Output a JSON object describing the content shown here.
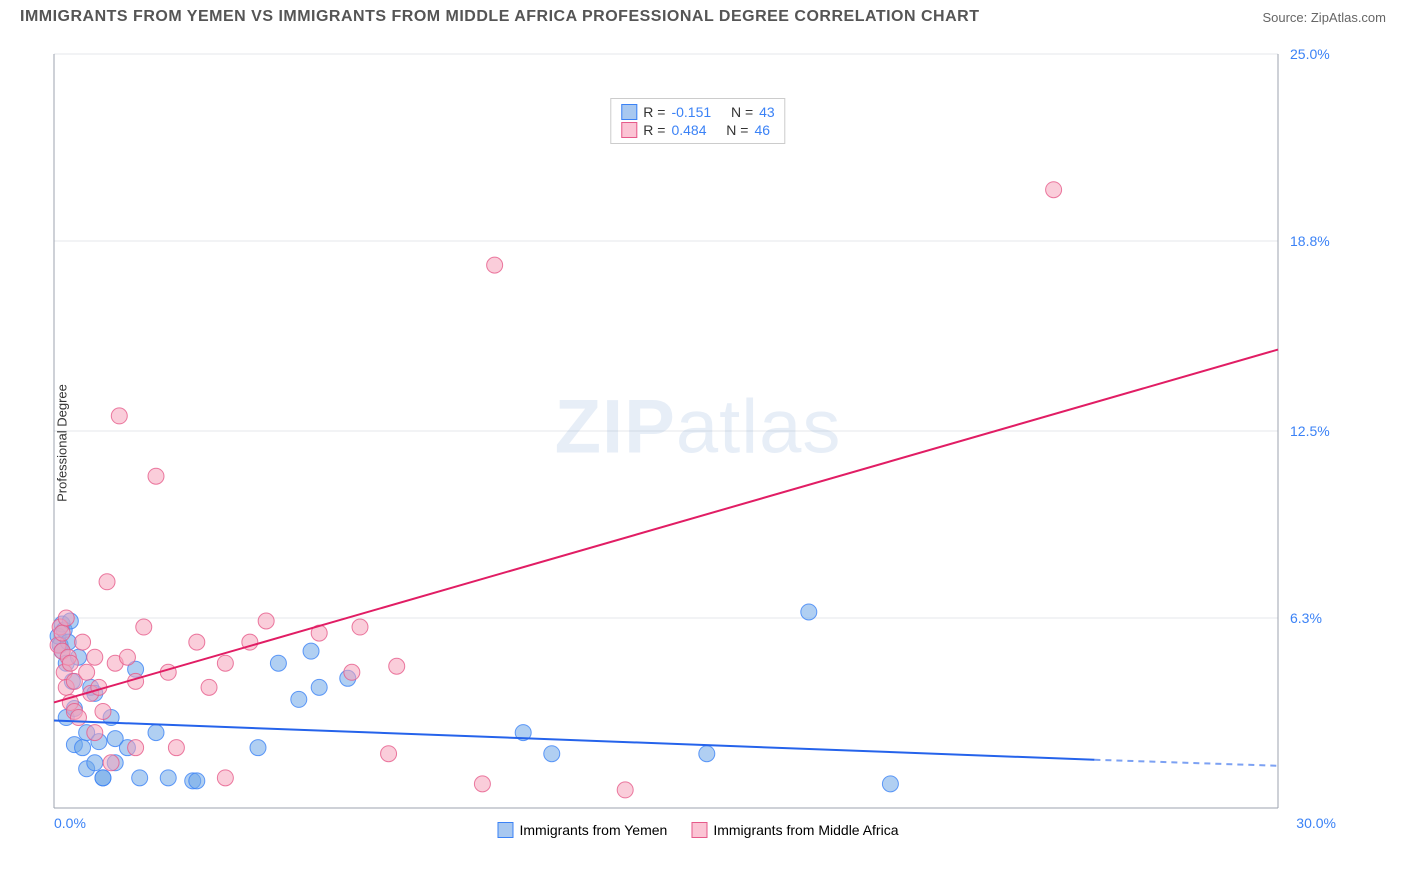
{
  "title": "IMMIGRANTS FROM YEMEN VS IMMIGRANTS FROM MIDDLE AFRICA PROFESSIONAL DEGREE CORRELATION CHART",
  "source_label": "Source: ",
  "source_name": "ZipAtlas.com",
  "y_axis_label": "Professional Degree",
  "watermark_bold": "ZIP",
  "watermark_rest": "atlas",
  "chart": {
    "type": "scatter",
    "xlim": [
      0,
      30
    ],
    "ylim": [
      0,
      25
    ],
    "x_ticks": [
      {
        "v": 0,
        "label": "0.0%"
      },
      {
        "v": 30,
        "label": "30.0%"
      }
    ],
    "y_ticks": [
      {
        "v": 6.3,
        "label": "6.3%"
      },
      {
        "v": 12.5,
        "label": "12.5%"
      },
      {
        "v": 18.8,
        "label": "18.8%"
      },
      {
        "v": 25.0,
        "label": "25.0%"
      }
    ],
    "grid_color": "#e5e7eb",
    "border_color": "#9ca3af",
    "background_color": "#ffffff",
    "marker_radius": 8,
    "marker_opacity": 0.55,
    "series": [
      {
        "name": "Immigrants from Yemen",
        "color": "#6fa8e8",
        "stroke": "#3b82f6",
        "R": "-0.151",
        "N": "43",
        "trend": {
          "x1": 0,
          "y1": 2.9,
          "x2": 25.5,
          "y2": 1.6,
          "dashed_to": 30,
          "y_dashed": 1.4,
          "color": "#2563eb",
          "width": 2
        },
        "points": [
          [
            0.1,
            5.7
          ],
          [
            0.15,
            5.4
          ],
          [
            0.2,
            6.1
          ],
          [
            0.2,
            5.2
          ],
          [
            0.25,
            5.9
          ],
          [
            0.3,
            4.8
          ],
          [
            0.3,
            3.0
          ],
          [
            0.35,
            5.5
          ],
          [
            0.4,
            6.2
          ],
          [
            0.45,
            4.2
          ],
          [
            0.5,
            3.3
          ],
          [
            0.5,
            2.1
          ],
          [
            0.6,
            5.0
          ],
          [
            0.7,
            2.0
          ],
          [
            0.8,
            1.3
          ],
          [
            0.8,
            2.5
          ],
          [
            0.9,
            4.0
          ],
          [
            1.0,
            1.5
          ],
          [
            1.0,
            3.8
          ],
          [
            1.1,
            2.2
          ],
          [
            1.2,
            1.0
          ],
          [
            1.2,
            1.0
          ],
          [
            1.4,
            3.0
          ],
          [
            1.5,
            1.5
          ],
          [
            1.5,
            2.3
          ],
          [
            1.8,
            2.0
          ],
          [
            2.0,
            4.6
          ],
          [
            2.1,
            1.0
          ],
          [
            2.5,
            2.5
          ],
          [
            2.8,
            1.0
          ],
          [
            3.4,
            0.9
          ],
          [
            3.5,
            0.9
          ],
          [
            5.0,
            2.0
          ],
          [
            5.5,
            4.8
          ],
          [
            6.0,
            3.6
          ],
          [
            6.3,
            5.2
          ],
          [
            7.2,
            4.3
          ],
          [
            11.5,
            2.5
          ],
          [
            12.2,
            1.8
          ],
          [
            16.0,
            1.8
          ],
          [
            18.5,
            6.5
          ],
          [
            20.5,
            0.8
          ],
          [
            6.5,
            4.0
          ]
        ]
      },
      {
        "name": "Immigrants from Middle Africa",
        "color": "#f6a4bb",
        "stroke": "#e65a8a",
        "R": "0.484",
        "N": "46",
        "trend": {
          "x1": 0,
          "y1": 3.5,
          "x2": 30,
          "y2": 15.2,
          "color": "#e11d64",
          "width": 2
        },
        "points": [
          [
            0.1,
            5.4
          ],
          [
            0.15,
            6.0
          ],
          [
            0.2,
            5.2
          ],
          [
            0.2,
            5.8
          ],
          [
            0.25,
            4.5
          ],
          [
            0.3,
            6.3
          ],
          [
            0.3,
            4.0
          ],
          [
            0.35,
            5.0
          ],
          [
            0.4,
            3.5
          ],
          [
            0.4,
            4.8
          ],
          [
            0.5,
            3.2
          ],
          [
            0.5,
            4.2
          ],
          [
            0.6,
            3.0
          ],
          [
            0.7,
            5.5
          ],
          [
            0.8,
            4.5
          ],
          [
            0.9,
            3.8
          ],
          [
            1.0,
            5.0
          ],
          [
            1.0,
            2.5
          ],
          [
            1.1,
            4.0
          ],
          [
            1.2,
            3.2
          ],
          [
            1.3,
            7.5
          ],
          [
            1.4,
            1.5
          ],
          [
            1.5,
            4.8
          ],
          [
            1.6,
            13.0
          ],
          [
            1.8,
            5.0
          ],
          [
            2.0,
            2.0
          ],
          [
            2.0,
            4.2
          ],
          [
            2.2,
            6.0
          ],
          [
            2.5,
            11.0
          ],
          [
            2.8,
            4.5
          ],
          [
            3.0,
            2.0
          ],
          [
            3.5,
            5.5
          ],
          [
            3.8,
            4.0
          ],
          [
            4.2,
            1.0
          ],
          [
            4.2,
            4.8
          ],
          [
            4.8,
            5.5
          ],
          [
            5.2,
            6.2
          ],
          [
            6.5,
            5.8
          ],
          [
            7.3,
            4.5
          ],
          [
            7.5,
            6.0
          ],
          [
            8.2,
            1.8
          ],
          [
            8.4,
            4.7
          ],
          [
            10.5,
            0.8
          ],
          [
            10.8,
            18.0
          ],
          [
            14.0,
            0.6
          ],
          [
            24.5,
            20.5
          ]
        ]
      }
    ]
  },
  "legend_top": {
    "r_label": "R =",
    "n_label": "N ="
  },
  "legend_bottom": [
    {
      "label": "Immigrants from Yemen",
      "fill": "#a8c8f0",
      "stroke": "#3b82f6"
    },
    {
      "label": "Immigrants from Middle Africa",
      "fill": "#fbc4d4",
      "stroke": "#e65a8a"
    }
  ]
}
